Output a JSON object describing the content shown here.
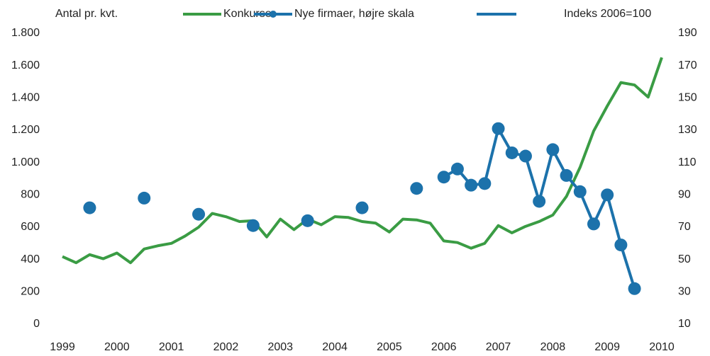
{
  "chart_data": {
    "type": "line",
    "y_label": "Antal pr. kvt.",
    "y2_label": "Indeks 2006=100",
    "xlim": [
      1999,
      2010
    ],
    "xticks": [
      1999,
      2000,
      2001,
      2002,
      2003,
      2004,
      2005,
      2006,
      2007,
      2008,
      2009,
      2010
    ],
    "ylim": [
      0,
      1800
    ],
    "yticks": [
      0,
      200,
      400,
      600,
      800,
      {
        "value": 1000,
        "label": "1.000"
      },
      {
        "value": 1200,
        "label": "1.200"
      },
      {
        "value": 1400,
        "label": "1.400"
      },
      {
        "value": 1600,
        "label": "1.600"
      },
      {
        "value": 1800,
        "label": "1.800"
      }
    ],
    "y2lim": [
      10,
      190
    ],
    "y2ticks": [
      10,
      30,
      50,
      70,
      90,
      110,
      130,
      150,
      170,
      190
    ],
    "grid": false,
    "series": [
      {
        "name": "Konkurser",
        "color": "#3a9c44",
        "marker": false,
        "x": [
          1999,
          1999.25,
          1999.5,
          1999.75,
          2000,
          2000.25,
          2000.5,
          2000.75,
          2001,
          2001.25,
          2001.5,
          2001.75,
          2002,
          2002.25,
          2002.5,
          2002.75,
          2003,
          2003.25,
          2003.5,
          2003.75,
          2004,
          2004.25,
          2004.5,
          2004.75,
          2005,
          2005.25,
          2005.5,
          2005.75,
          2006,
          2006.25,
          2006.5,
          2006.75,
          2007,
          2007.25,
          2007.5,
          2007.75,
          2008,
          2008.25,
          2008.5,
          2008.75,
          2009,
          2009.25,
          2009.5,
          2009.75,
          2010
        ],
        "values": [
          418,
          380,
          430,
          405,
          440,
          380,
          465,
          485,
          500,
          545,
          600,
          685,
          665,
          635,
          640,
          540,
          650,
          585,
          650,
          615,
          665,
          660,
          635,
          625,
          570,
          650,
          645,
          625,
          515,
          505,
          470,
          500,
          610,
          565,
          605,
          635,
          675,
          790,
          970,
          1195,
          1350,
          1495,
          1480,
          1405,
          1650
        ]
      },
      {
        "name": "Nye firmaer, højre skala",
        "color": "#1c72ab",
        "marker": true,
        "axis": "y2",
        "x": [
          1999.5,
          2000,
          2000.5,
          2001,
          2001.5,
          2002,
          2002.5,
          2003,
          2003.5,
          2004,
          2004.5,
          2005,
          2005.5,
          2005.75,
          2006,
          2006.25,
          2006.5,
          2006.75,
          2007,
          2007.25,
          2007.5,
          2007.75,
          2008,
          2008.25,
          2008.5,
          2008.75,
          2009,
          2009.25,
          2009.5
        ],
        "values": [
          82,
          null,
          88,
          null,
          78,
          null,
          71,
          null,
          74,
          null,
          82,
          null,
          94,
          null,
          101,
          106,
          96,
          97,
          131,
          116,
          114,
          86,
          118,
          102,
          92,
          72,
          90,
          59,
          32
        ]
      }
    ]
  }
}
